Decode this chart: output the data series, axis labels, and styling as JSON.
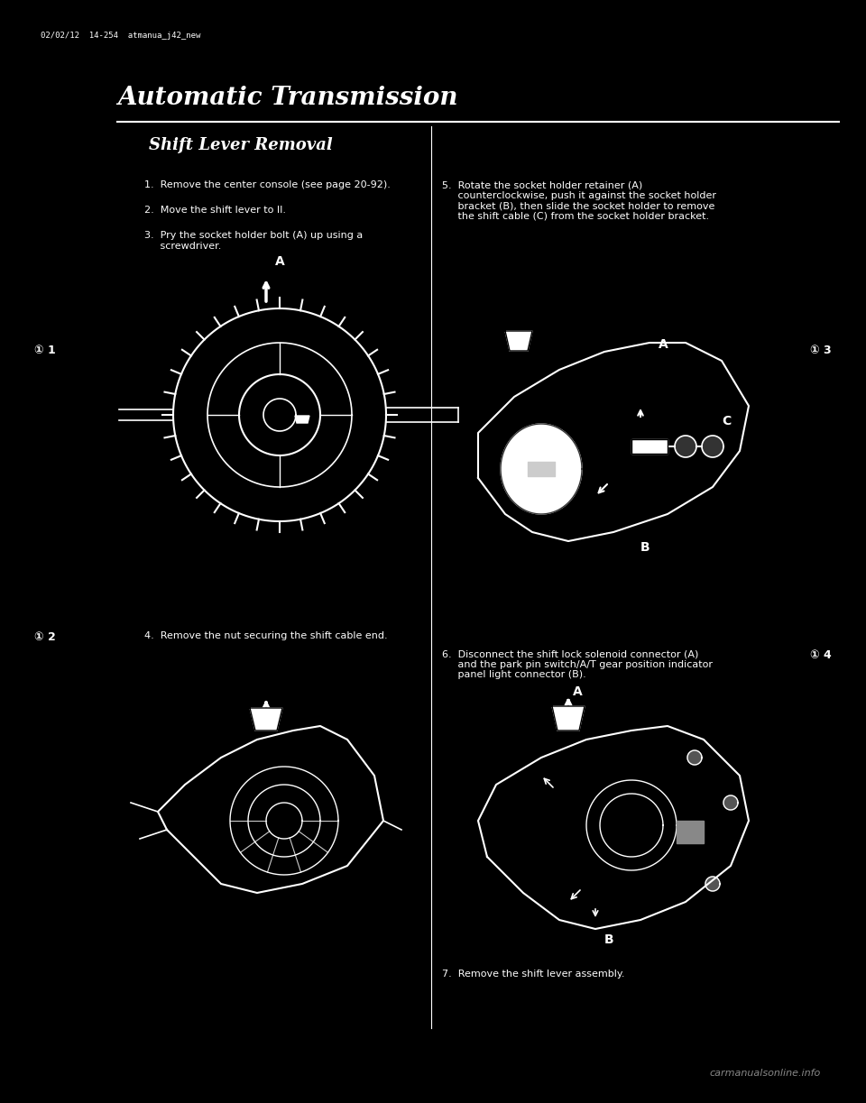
{
  "bg_color": "#000000",
  "text_color": "#ffffff",
  "header_text": "02/02/12  14-254  atmanua_j42_new",
  "section_title": "Automatic Transmission",
  "subsection_title": "Shift Lever Removal",
  "step1_text": "1.  Remove the center console (see page 20-92).",
  "step2_text": "2.  Move the shift lever to II.",
  "step3_text": "3.  Pry the socket holder bolt (A) up using a\n     screwdriver.",
  "step4_text": "4.  Remove the nut securing the shift cable end.",
  "step5_text": "5.  Rotate the socket holder retainer (A)\n     counterclockwise, push it against the socket holder\n     bracket (B), then slide the socket holder to remove\n     the shift cable (C) from the socket holder bracket.",
  "step6_text": "6.  Disconnect the shift lock solenoid connector (A)\n     and the park pin switch/A/T gear position indicator\n     panel light connector (B).",
  "step7_text": "7.  Remove the shift lever assembly.",
  "label_fig1": "① 1",
  "label_fig2": "① 2",
  "label_fig3": "① 3",
  "label_fig4": "① 4",
  "watermark": "carmanualsonline.info",
  "divider_line_color": "#ffffff",
  "draw_color": "#ffffff"
}
